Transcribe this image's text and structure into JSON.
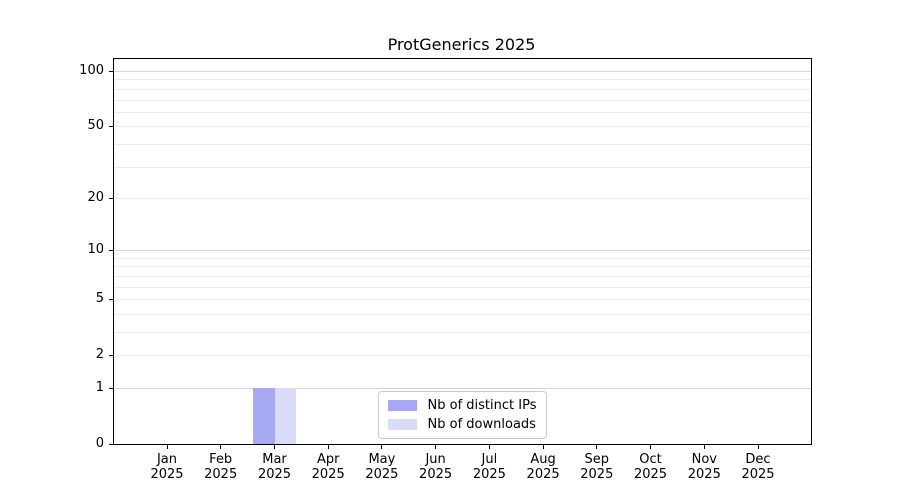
{
  "chart_data": {
    "type": "bar",
    "title": "ProtGenerics 2025",
    "categories": [
      {
        "month": "Jan",
        "year": "2025"
      },
      {
        "month": "Feb",
        "year": "2025"
      },
      {
        "month": "Mar",
        "year": "2025"
      },
      {
        "month": "Apr",
        "year": "2025"
      },
      {
        "month": "May",
        "year": "2025"
      },
      {
        "month": "Jun",
        "year": "2025"
      },
      {
        "month": "Jul",
        "year": "2025"
      },
      {
        "month": "Aug",
        "year": "2025"
      },
      {
        "month": "Sep",
        "year": "2025"
      },
      {
        "month": "Oct",
        "year": "2025"
      },
      {
        "month": "Nov",
        "year": "2025"
      },
      {
        "month": "Dec",
        "year": "2025"
      }
    ],
    "series": [
      {
        "name": "Nb of distinct IPs",
        "color": "#a6a8f2",
        "values": [
          0,
          0,
          1,
          0,
          0,
          0,
          0,
          0,
          0,
          0,
          0,
          0
        ]
      },
      {
        "name": "Nb of downloads",
        "color": "#d9dbf9",
        "values": [
          0,
          0,
          1,
          0,
          0,
          0,
          0,
          0,
          0,
          0,
          0,
          0
        ]
      }
    ],
    "y_scale": "log1p",
    "ylim": [
      0,
      116
    ],
    "y_ticks": [
      0,
      1,
      2,
      5,
      10,
      20,
      50,
      100
    ],
    "grid_values_minor": [
      2,
      3,
      4,
      5,
      6,
      7,
      8,
      9,
      20,
      30,
      40,
      50,
      60,
      70,
      80,
      90
    ],
    "grid_values_major": [
      1,
      10,
      100
    ],
    "legend_position": "lower center",
    "colors": {
      "grid_minor": "#ebebeb",
      "grid_major": "#d6d6d6",
      "axis": "#000000",
      "background": "#ffffff"
    }
  }
}
